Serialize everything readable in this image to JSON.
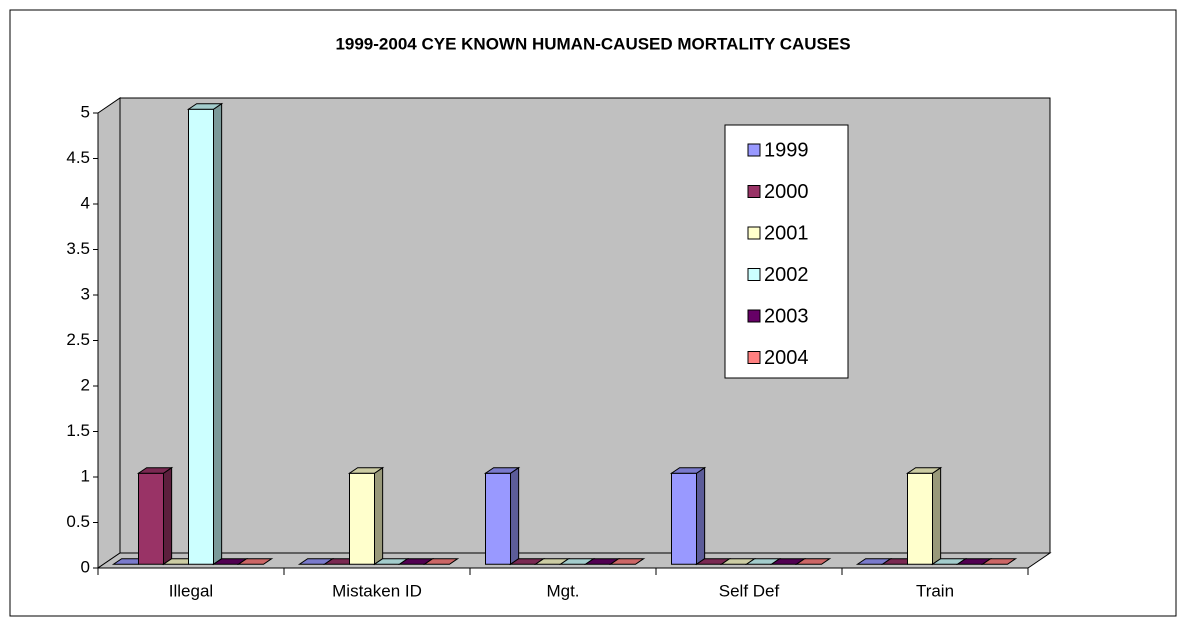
{
  "chart_data": {
    "type": "bar3d",
    "title": "1999-2004 CYE KNOWN HUMAN-CAUSED MORTALITY CAUSES",
    "categories": [
      "Illegal",
      "Mistaken ID",
      "Mgt.",
      "Self Def",
      "Train"
    ],
    "series": [
      {
        "name": "1999",
        "color": "#9999ff",
        "values": [
          0,
          0,
          1,
          1,
          0
        ]
      },
      {
        "name": "2000",
        "color": "#993366",
        "values": [
          1,
          0,
          0,
          0,
          0
        ]
      },
      {
        "name": "2001",
        "color": "#ffffcc",
        "values": [
          0,
          1,
          0,
          0,
          1
        ]
      },
      {
        "name": "2002",
        "color": "#ccffff",
        "values": [
          5,
          0,
          0,
          0,
          0
        ]
      },
      {
        "name": "2003",
        "color": "#660066",
        "values": [
          0,
          0,
          0,
          0,
          0
        ]
      },
      {
        "name": "2004",
        "color": "#ff8080",
        "values": [
          0,
          0,
          0,
          0,
          0
        ]
      }
    ],
    "ylim": [
      0,
      5
    ],
    "yticks": [
      0,
      0.5,
      1,
      1.5,
      2,
      2.5,
      3,
      3.5,
      4,
      4.5,
      5
    ],
    "wall_color": "#c0c0c0"
  }
}
